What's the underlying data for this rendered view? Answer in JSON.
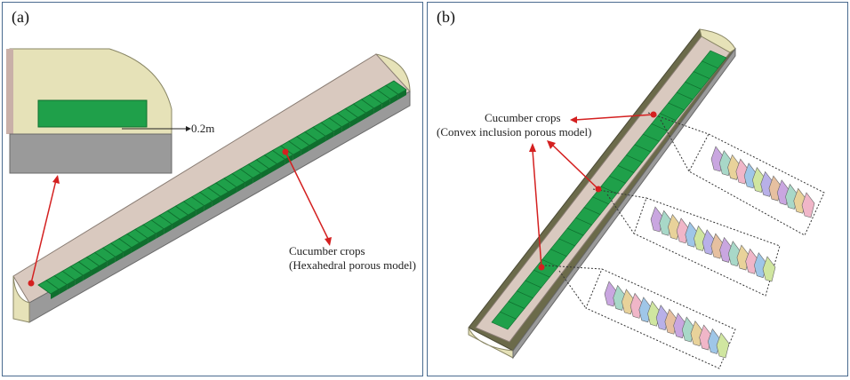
{
  "panel_a": {
    "label": "(a)",
    "dimension": "0.2m",
    "crop_label_line1": "Cucumber crops",
    "crop_label_line2": "(Hexahedral porous model)"
  },
  "panel_b": {
    "label": "(b)",
    "crop_label_line1": "Cucumber crops",
    "crop_label_line2": "(Convex inclusion porous model)"
  },
  "colors": {
    "crop_green": "#1fa04a",
    "crop_green_dark": "#0f6e2e",
    "tunnel_cream": "#e6e2b8",
    "ground_gray": "#9a9a9a",
    "arrow_red": "#d42020",
    "border_blue": "#4a6b8f"
  }
}
